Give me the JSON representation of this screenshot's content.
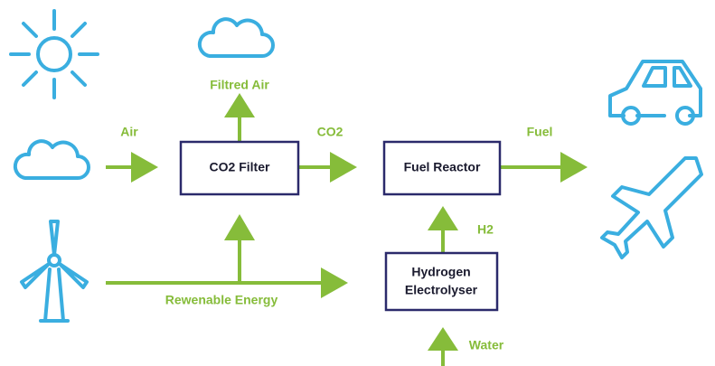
{
  "nodes": [
    {
      "label": "CO2 Filter"
    },
    {
      "label": "Fuel Reactor"
    },
    {
      "label": [
        "Hydrogen",
        "Electrolyser"
      ]
    }
  ],
  "edges": [
    {
      "label": "Air"
    },
    {
      "label": "Filtred Air"
    },
    {
      "label": "CO2"
    },
    {
      "label": "Fuel"
    },
    {
      "label": "H2"
    },
    {
      "label": "Rewenable Energy"
    },
    {
      "label": "Water"
    }
  ]
}
